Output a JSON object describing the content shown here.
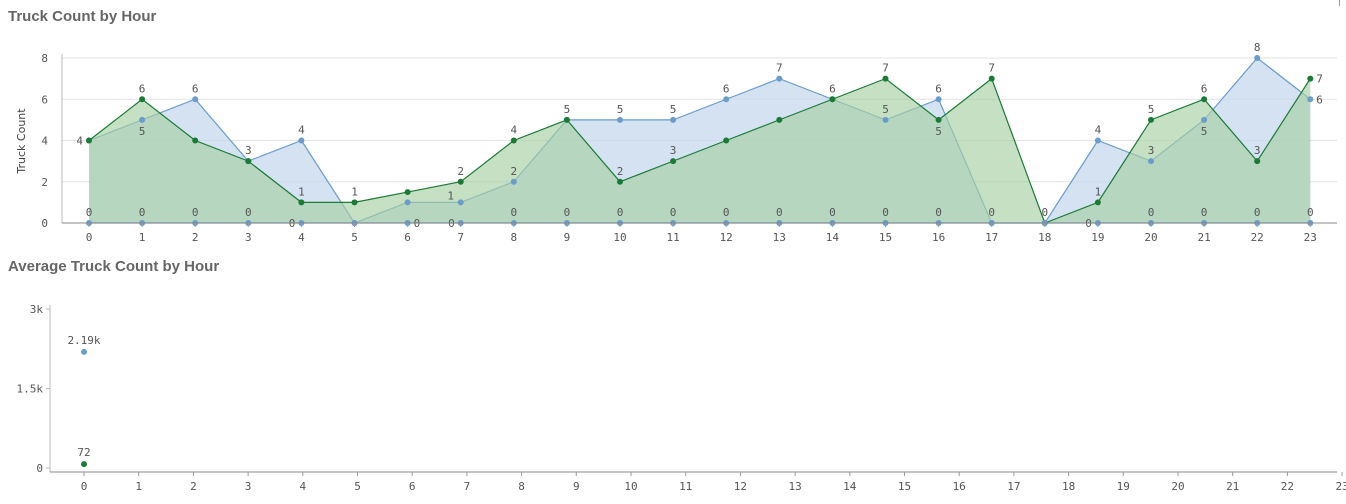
{
  "chart_data": [
    {
      "type": "area",
      "title": "Truck Count by Hour",
      "ylabel": "Truck Count",
      "xlabel": "",
      "ylim": [
        0,
        8
      ],
      "y_ticks": [
        0,
        2,
        4,
        6,
        8
      ],
      "categories": [
        "0",
        "1",
        "2",
        "3",
        "4",
        "5",
        "6",
        "7",
        "8",
        "9",
        "10",
        "11",
        "12",
        "13",
        "14",
        "15",
        "16",
        "17",
        "18",
        "19",
        "20",
        "21",
        "22",
        "23"
      ],
      "grid": true,
      "colors": {
        "blue": "#6a9ccc",
        "blue_fill": "#c6d8ee",
        "green": "#1b7a36",
        "green_fill": "#a6cfa3"
      },
      "series": [
        {
          "color": "blue",
          "values": [
            4,
            5,
            6,
            3,
            4,
            0,
            1,
            1,
            2,
            5,
            5,
            5,
            6,
            7,
            6,
            5,
            6,
            0,
            0,
            4,
            3,
            5,
            8,
            6
          ]
        },
        {
          "color": "green",
          "values": [
            4,
            6,
            4,
            3,
            1,
            1,
            1.5,
            2,
            4,
            5,
            2,
            3,
            4,
            5,
            6,
            7,
            5,
            7,
            0,
            1,
            5,
            6,
            3,
            7
          ]
        },
        {
          "color": "blue",
          "values": [
            0,
            0,
            0,
            0,
            0,
            0,
            0,
            0,
            0,
            0,
            0,
            0,
            0,
            0,
            0,
            0,
            0,
            0,
            0,
            0,
            0,
            0,
            0,
            0
          ]
        }
      ],
      "data_labels": [
        {
          "x": 0,
          "y": 4,
          "text": "4",
          "pos": "left"
        },
        {
          "x": 0,
          "y": 0,
          "text": "0",
          "pos": "above"
        },
        {
          "x": 1,
          "y": 6,
          "text": "6",
          "pos": "above"
        },
        {
          "x": 1,
          "y": 5,
          "text": "5",
          "pos": "below"
        },
        {
          "x": 1,
          "y": 0,
          "text": "0",
          "pos": "above"
        },
        {
          "x": 2,
          "y": 6,
          "text": "6",
          "pos": "above"
        },
        {
          "x": 2,
          "y": 0,
          "text": "0",
          "pos": "above"
        },
        {
          "x": 3,
          "y": 3,
          "text": "3",
          "pos": "above"
        },
        {
          "x": 3,
          "y": 0,
          "text": "0",
          "pos": "above"
        },
        {
          "x": 4,
          "y": 4,
          "text": "4",
          "pos": "above"
        },
        {
          "x": 4,
          "y": 1,
          "text": "1",
          "pos": "above"
        },
        {
          "x": 4,
          "y": 0,
          "text": "0",
          "pos": "left"
        },
        {
          "x": 5,
          "y": 1,
          "text": "1",
          "pos": "above"
        },
        {
          "x": 6,
          "y": 0,
          "text": "0",
          "pos": "right"
        },
        {
          "x": 7,
          "y": 2,
          "text": "2",
          "pos": "above"
        },
        {
          "x": 7,
          "y": 1,
          "text": "1",
          "pos": "above-left"
        },
        {
          "x": 7,
          "y": 0,
          "text": "0",
          "pos": "left"
        },
        {
          "x": 8,
          "y": 4,
          "text": "4",
          "pos": "above"
        },
        {
          "x": 8,
          "y": 2,
          "text": "2",
          "pos": "above"
        },
        {
          "x": 8,
          "y": 0,
          "text": "0",
          "pos": "above"
        },
        {
          "x": 9,
          "y": 5,
          "text": "5",
          "pos": "above"
        },
        {
          "x": 9,
          "y": 0,
          "text": "0",
          "pos": "above"
        },
        {
          "x": 10,
          "y": 5,
          "text": "5",
          "pos": "above"
        },
        {
          "x": 10,
          "y": 2,
          "text": "2",
          "pos": "above"
        },
        {
          "x": 10,
          "y": 0,
          "text": "0",
          "pos": "above"
        },
        {
          "x": 11,
          "y": 5,
          "text": "5",
          "pos": "above"
        },
        {
          "x": 11,
          "y": 3,
          "text": "3",
          "pos": "above"
        },
        {
          "x": 11,
          "y": 0,
          "text": "0",
          "pos": "above"
        },
        {
          "x": 12,
          "y": 6,
          "text": "6",
          "pos": "above"
        },
        {
          "x": 12,
          "y": 0,
          "text": "0",
          "pos": "above"
        },
        {
          "x": 13,
          "y": 7,
          "text": "7",
          "pos": "above"
        },
        {
          "x": 13,
          "y": 0,
          "text": "0",
          "pos": "above"
        },
        {
          "x": 14,
          "y": 6,
          "text": "6",
          "pos": "above"
        },
        {
          "x": 14,
          "y": 0,
          "text": "0",
          "pos": "above"
        },
        {
          "x": 15,
          "y": 7,
          "text": "7",
          "pos": "above"
        },
        {
          "x": 15,
          "y": 5,
          "text": "5",
          "pos": "above"
        },
        {
          "x": 15,
          "y": 0,
          "text": "0",
          "pos": "above"
        },
        {
          "x": 16,
          "y": 6,
          "text": "6",
          "pos": "above"
        },
        {
          "x": 16,
          "y": 5,
          "text": "5",
          "pos": "below"
        },
        {
          "x": 16,
          "y": 0,
          "text": "0",
          "pos": "above"
        },
        {
          "x": 17,
          "y": 7,
          "text": "7",
          "pos": "above"
        },
        {
          "x": 17,
          "y": 0,
          "text": "0",
          "pos": "above"
        },
        {
          "x": 18,
          "y": 0,
          "text": "0",
          "pos": "above"
        },
        {
          "x": 19,
          "y": 4,
          "text": "4",
          "pos": "above"
        },
        {
          "x": 19,
          "y": 1,
          "text": "1",
          "pos": "above"
        },
        {
          "x": 19,
          "y": 0,
          "text": "0",
          "pos": "left"
        },
        {
          "x": 20,
          "y": 5,
          "text": "5",
          "pos": "above"
        },
        {
          "x": 20,
          "y": 3,
          "text": "3",
          "pos": "above"
        },
        {
          "x": 20,
          "y": 0,
          "text": "0",
          "pos": "above"
        },
        {
          "x": 21,
          "y": 6,
          "text": "6",
          "pos": "above"
        },
        {
          "x": 21,
          "y": 5,
          "text": "5",
          "pos": "below"
        },
        {
          "x": 21,
          "y": 0,
          "text": "0",
          "pos": "above"
        },
        {
          "x": 22,
          "y": 8,
          "text": "8",
          "pos": "above"
        },
        {
          "x": 22,
          "y": 3,
          "text": "3",
          "pos": "above"
        },
        {
          "x": 22,
          "y": 0,
          "text": "0",
          "pos": "above"
        },
        {
          "x": 23,
          "y": 7,
          "text": "7",
          "pos": "right"
        },
        {
          "x": 23,
          "y": 6,
          "text": "6",
          "pos": "right"
        },
        {
          "x": 23,
          "y": 0,
          "text": "0",
          "pos": "above"
        }
      ]
    },
    {
      "type": "scatter",
      "title": "Average Truck Count by Hour",
      "xlabel": "",
      "ylabel": "",
      "ylim": [
        0,
        3000
      ],
      "y_ticks": [
        {
          "value": 0,
          "label": "0"
        },
        {
          "value": 1500,
          "label": "1.5k"
        },
        {
          "value": 3000,
          "label": "3k"
        }
      ],
      "categories": [
        "0",
        "1",
        "2",
        "3",
        "4",
        "5",
        "6",
        "7",
        "8",
        "9",
        "10",
        "11",
        "12",
        "13",
        "14",
        "15",
        "16",
        "17",
        "18",
        "19",
        "20",
        "21",
        "22",
        "23"
      ],
      "grid": false,
      "points": [
        {
          "x": 0,
          "y": 2190,
          "label": "2.19k",
          "color": "#6a9ccc"
        },
        {
          "x": 0,
          "y": 72,
          "label": "72",
          "color": "#1b7a36"
        }
      ]
    }
  ]
}
